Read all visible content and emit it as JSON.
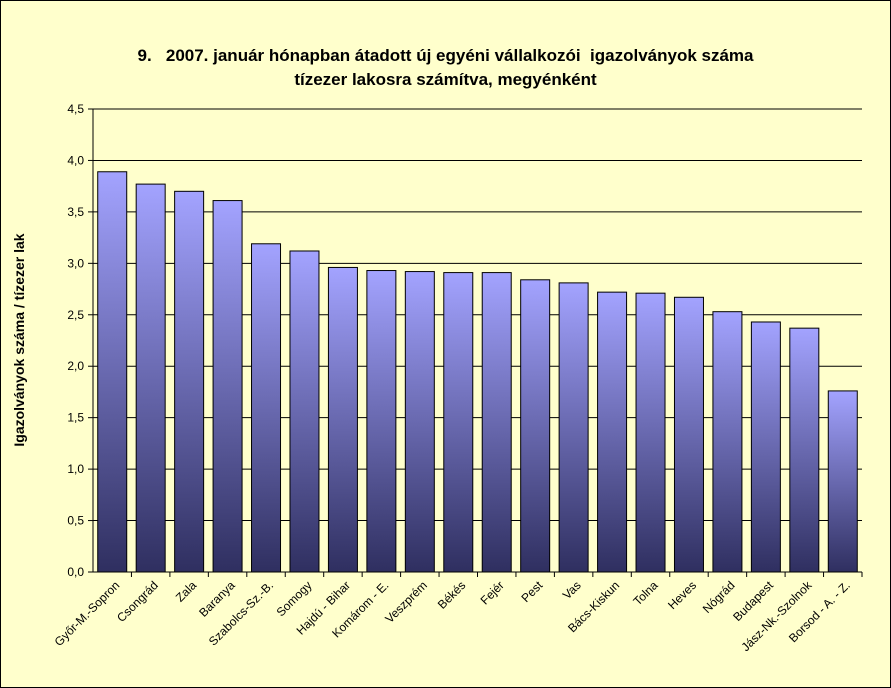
{
  "chart_data": {
    "type": "bar",
    "title_line1": "9.   2007. január hónapban átadott új egyéni vállalkozói  igazolványok száma",
    "title_line2": "tízezer lakosra számítva, megyénként",
    "xlabel": "",
    "ylabel": "Igazolványok száma / tízezer lak",
    "ylim": [
      0,
      4.5
    ],
    "yticks": [
      "0,0",
      "0,5",
      "1,0",
      "1,5",
      "2,0",
      "2,5",
      "3,0",
      "3,5",
      "4,0",
      "4,5"
    ],
    "grid": true,
    "categories": [
      "Győr-M.-Sopron",
      "Csongrád",
      "Zala",
      "Baranya",
      "Szabolcs-Sz.-B.",
      "Somogy",
      "Hajdú - Bihar",
      "Komárom - E.",
      "Veszprém",
      "Békés",
      "Fejér",
      "Pest",
      "Vas",
      "Bács-Kiskun",
      "Tolna",
      "Heves",
      "Nógrád",
      "Budapest",
      "Jász-Nk.-Szolnok",
      "Borsod - A. - Z."
    ],
    "values": [
      3.89,
      3.77,
      3.7,
      3.61,
      3.19,
      3.12,
      2.96,
      2.93,
      2.92,
      2.91,
      2.91,
      2.84,
      2.81,
      2.72,
      2.71,
      2.67,
      2.53,
      2.43,
      2.37,
      1.76
    ],
    "colors": {
      "bar_top": "#a3a3ff",
      "bar_bottom": "#2f2f60",
      "plot_bg": "#ffffcc",
      "grid": "#000000"
    }
  }
}
